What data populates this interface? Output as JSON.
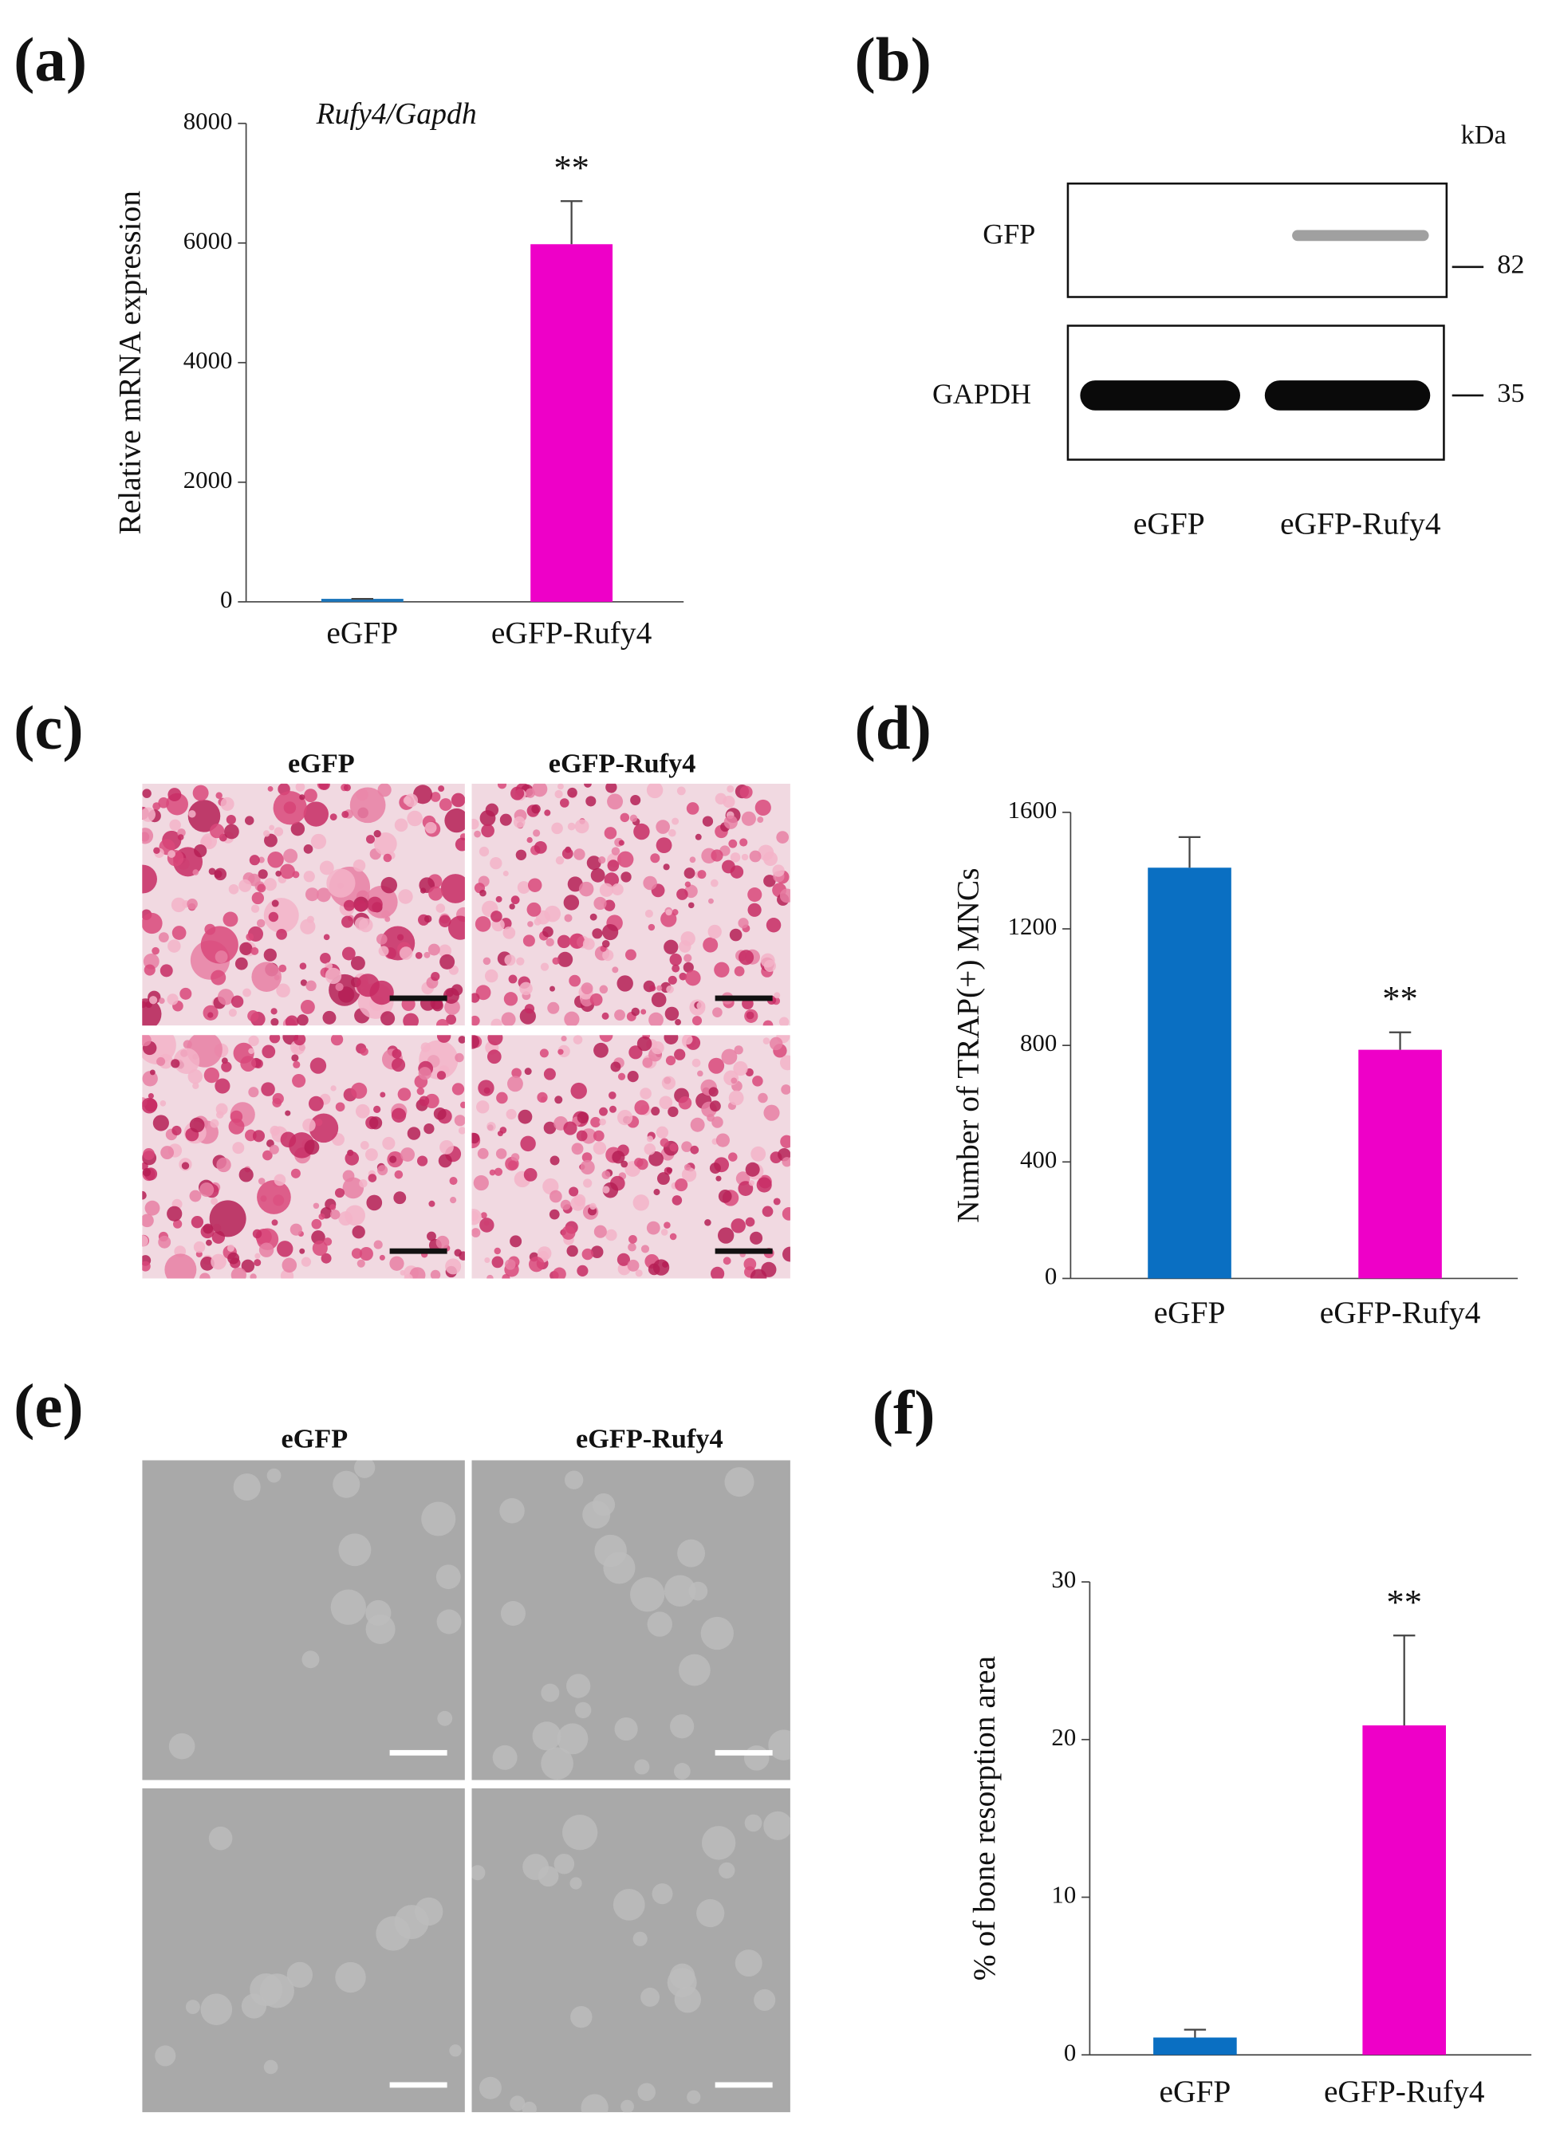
{
  "chart_data": [
    {
      "type": "bar",
      "panel": "(a)",
      "title": "Rufy4/Gapdh",
      "y_label": "Relative mRNA expression",
      "categories": [
        "eGFP",
        "eGFP-Rufy4"
      ],
      "values": [
        50,
        5980
      ],
      "errors": [
        0,
        720
      ],
      "colors": [
        "#1b75bb",
        "#ee00c8"
      ],
      "significance": [
        null,
        "**"
      ],
      "ylim": [
        0,
        8000
      ],
      "yticks": [
        0,
        2000,
        4000,
        6000,
        8000
      ]
    },
    {
      "type": "bar",
      "panel": "(d)",
      "y_label": "Number of TRAP(+) MNCs",
      "categories": [
        "eGFP",
        "eGFP-Rufy4"
      ],
      "values": [
        1410,
        785
      ],
      "errors": [
        105,
        60
      ],
      "colors": [
        "#0a6fc2",
        "#ee00c8"
      ],
      "significance": [
        null,
        "**"
      ],
      "ylim": [
        0,
        1600
      ],
      "yticks": [
        0,
        400,
        800,
        1200,
        1600
      ]
    },
    {
      "type": "bar",
      "panel": "(f)",
      "y_label": "% of bone resorption area",
      "categories": [
        "eGFP",
        "eGFP-Rufy4"
      ],
      "values": [
        1.1,
        20.9
      ],
      "errors": [
        0.5,
        5.7
      ],
      "colors": [
        "#0a6fc2",
        "#ee00c8"
      ],
      "significance": [
        null,
        "**"
      ],
      "ylim": [
        0,
        30
      ],
      "yticks": [
        0,
        10,
        20,
        30
      ]
    }
  ],
  "blot": {
    "panel": "(b)",
    "unit": "kDa",
    "rows": [
      {
        "label": "GFP",
        "marker": "82"
      },
      {
        "label": "GAPDH",
        "marker": "35"
      }
    ],
    "lanes": [
      "eGFP",
      "eGFP-Rufy4"
    ]
  },
  "micrographs": [
    {
      "panel": "(c)",
      "columns": [
        "eGFP",
        "eGFP-Rufy4"
      ]
    },
    {
      "panel": "(e)",
      "columns": [
        "eGFP",
        "eGFP-Rufy4"
      ]
    }
  ]
}
